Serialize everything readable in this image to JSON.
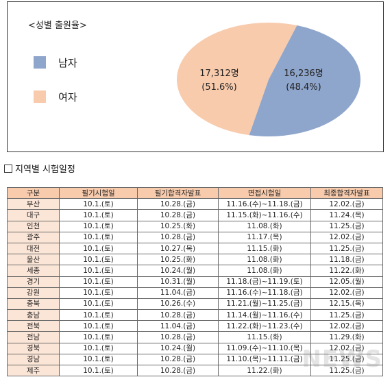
{
  "chart_data": {
    "type": "pie",
    "title": "<성별 출원율>",
    "slices": [
      {
        "name": "남자",
        "value": 16236,
        "value_label": "16,236명",
        "percent_label": "(48.4%)",
        "color": "#8ea5cc"
      },
      {
        "name": "여자",
        "value": 17312,
        "value_label": "17,312명",
        "percent_label": "(51.6%)",
        "color": "#f8cbad"
      }
    ],
    "legend_position": "left"
  },
  "section_title": "지역별 시험일정",
  "table": {
    "headers": [
      "구분",
      "필기시험일",
      "필기합격자발표",
      "면접시험일",
      "최종합격자발표"
    ],
    "rows": [
      [
        "부산",
        "10.1.(토)",
        "10.28.(금)",
        "11.16.(수)~11.18.(금)",
        "12.02.(금)"
      ],
      [
        "대구",
        "10.1.(토)",
        "10.28.(금)",
        "11.15.(화)~11.16.(수)",
        "11.24.(목)"
      ],
      [
        "인천",
        "10.1.(토)",
        "10.25.(화)",
        "11.08.(화)",
        "11.25.(금)"
      ],
      [
        "광주",
        "10.1.(토)",
        "10.28.(금)",
        "11.17.(목)",
        "12.02.(금)"
      ],
      [
        "대전",
        "10.1.(토)",
        "10.27.(목)",
        "11.15.(화)",
        "11.25.(금)"
      ],
      [
        "울산",
        "10.1.(토)",
        "10.25.(화)",
        "11.08.(화)",
        "11.18.(금)"
      ],
      [
        "세종",
        "10.1.(토)",
        "10.24.(월)",
        "11.08.(화)",
        "11.22.(화)"
      ],
      [
        "경기",
        "10.1.(토)",
        "10.31.(월)",
        "11.18.(금)~11.19.(토)",
        "12.05.(월)"
      ],
      [
        "강원",
        "10.1.(토)",
        "11.04.(금)",
        "11.16.(수)~11.18.(금)",
        "12.02.(금)"
      ],
      [
        "충북",
        "10.1.(토)",
        "10.26.(수)",
        "11.21.(월)~11.25.(금)",
        "12.15.(목)"
      ],
      [
        "충남",
        "10.1.(토)",
        "10.28.(금)",
        "11.14.(월)~11.16.(수)",
        "11.25.(금)"
      ],
      [
        "전북",
        "10.1.(토)",
        "11.04.(금)",
        "11.22.(화)~11.23.(수)",
        "12.02.(금)"
      ],
      [
        "전남",
        "10.1.(토)",
        "10.28.(금)",
        "11.15.(화)",
        "11.29.(화)"
      ],
      [
        "경북",
        "10.1.(토)",
        "10.24.(월)",
        "11.09.(수)~11.10.(목)",
        "12.02.(금)"
      ],
      [
        "경남",
        "10.1.(토)",
        "10.28.(금)",
        "11.10.(목)~11.11.(금)",
        "11.25.(금)"
      ],
      [
        "제주",
        "10.1.(토)",
        "10.28.(금)",
        "11.22.(화)",
        "11.25.(금)"
      ]
    ]
  },
  "watermark": "NEWS"
}
